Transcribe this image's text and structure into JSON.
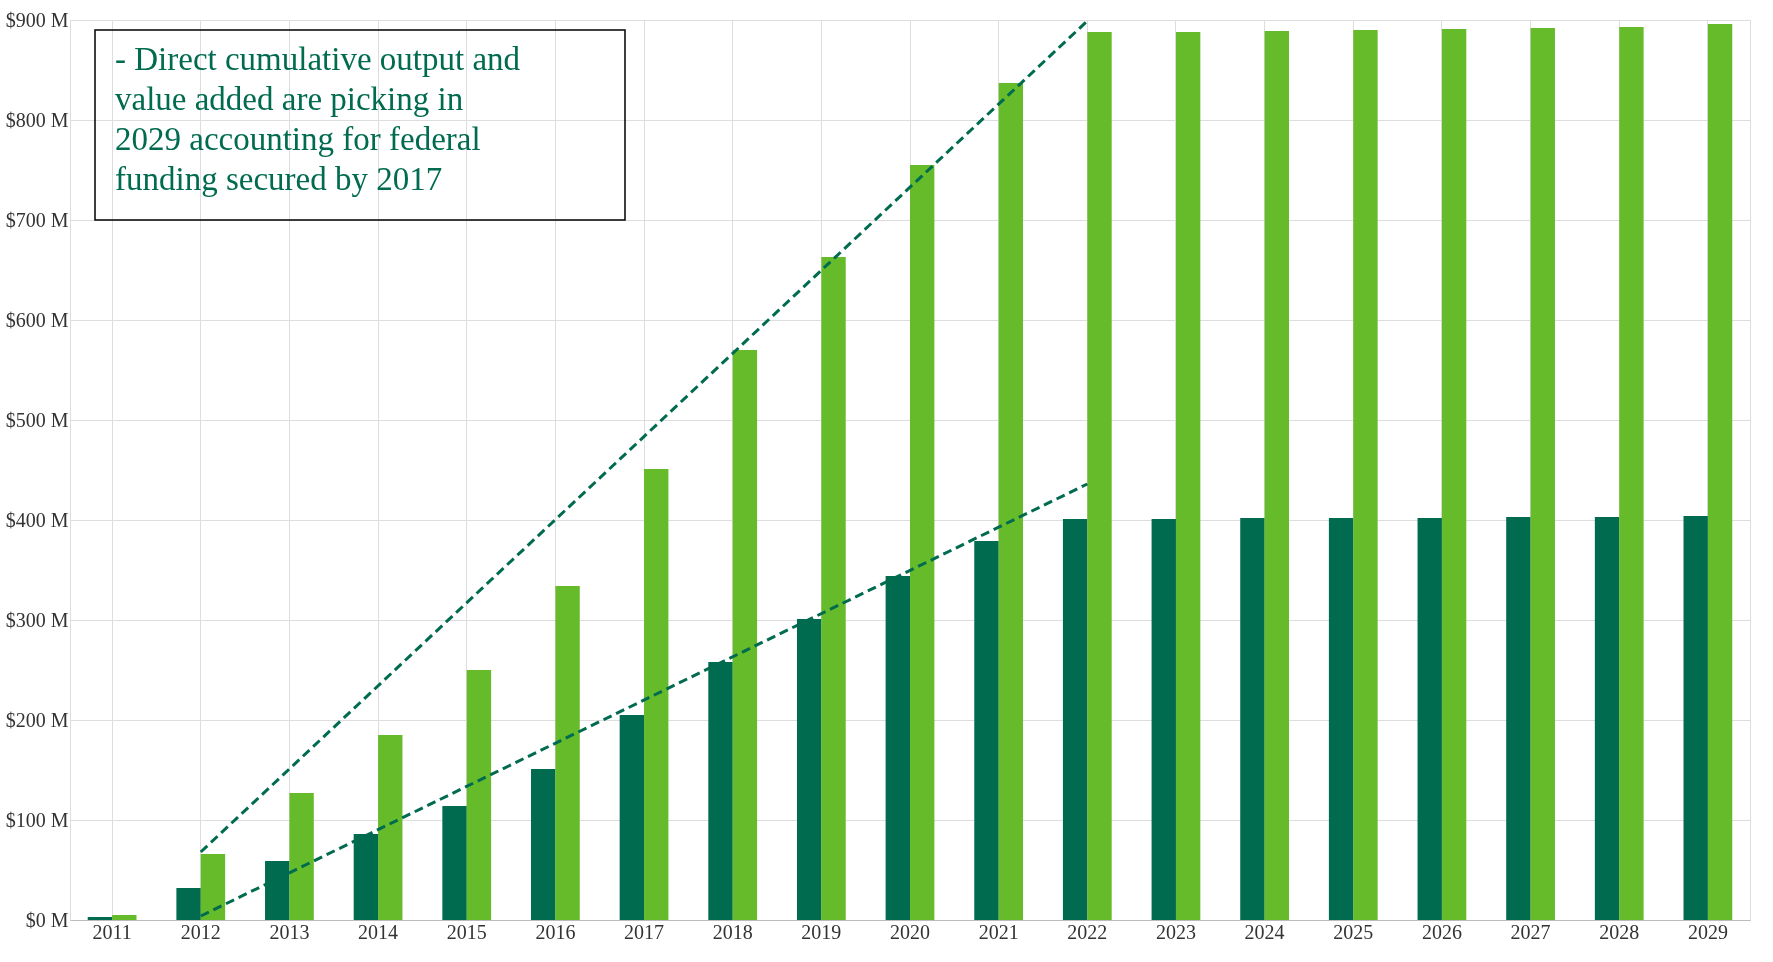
{
  "chart_data": {
    "type": "bar",
    "categories": [
      "2011",
      "2012",
      "2013",
      "2014",
      "2015",
      "2016",
      "2017",
      "2018",
      "2019",
      "2020",
      "2021",
      "2022",
      "2023",
      "2024",
      "2025",
      "2026",
      "2027",
      "2028",
      "2029"
    ],
    "series": [
      {
        "color": "#006b4f",
        "values": [
          3,
          32,
          59,
          86,
          114,
          151,
          205,
          258,
          301,
          344,
          379,
          401,
          401,
          402,
          402,
          402,
          403,
          403,
          404
        ]
      },
      {
        "color": "#66bb2a",
        "values": [
          5,
          66,
          127,
          185,
          250,
          334,
          451,
          570,
          663,
          755,
          837,
          888,
          888,
          889,
          890,
          891,
          892,
          893,
          896
        ]
      },
      {
        "type": "line",
        "color": "#006b4f",
        "line_style": "dashed",
        "values": [
          null,
          68,
          null,
          null,
          null,
          null,
          null,
          null,
          null,
          null,
          null,
          899,
          null,
          null,
          null,
          null,
          null,
          null,
          null
        ]
      },
      {
        "type": "line",
        "color": "#006b4f",
        "line_style": "dashed",
        "values": [
          null,
          4,
          null,
          null,
          null,
          null,
          null,
          null,
          null,
          null,
          null,
          436,
          null,
          null,
          null,
          null,
          null,
          null,
          null
        ]
      }
    ],
    "ylim": [
      0,
      900
    ],
    "yticks": [
      {
        "value": 0,
        "label": "$0 M"
      },
      {
        "value": 100,
        "label": "$100 M"
      },
      {
        "value": 200,
        "label": "$200 M"
      },
      {
        "value": 300,
        "label": "$300 M"
      },
      {
        "value": 400,
        "label": "$400 M"
      },
      {
        "value": 500,
        "label": "$500 M"
      },
      {
        "value": 600,
        "label": "$600 M"
      },
      {
        "value": 700,
        "label": "$700 M"
      },
      {
        "value": 800,
        "label": "$800 M"
      },
      {
        "value": 900,
        "label": "$900 M"
      }
    ],
    "grid": true,
    "legend": false,
    "annotations": [
      "- Direct cumulative output and value added are picking in 2029 accounting for federal funding secured by 2017"
    ]
  }
}
